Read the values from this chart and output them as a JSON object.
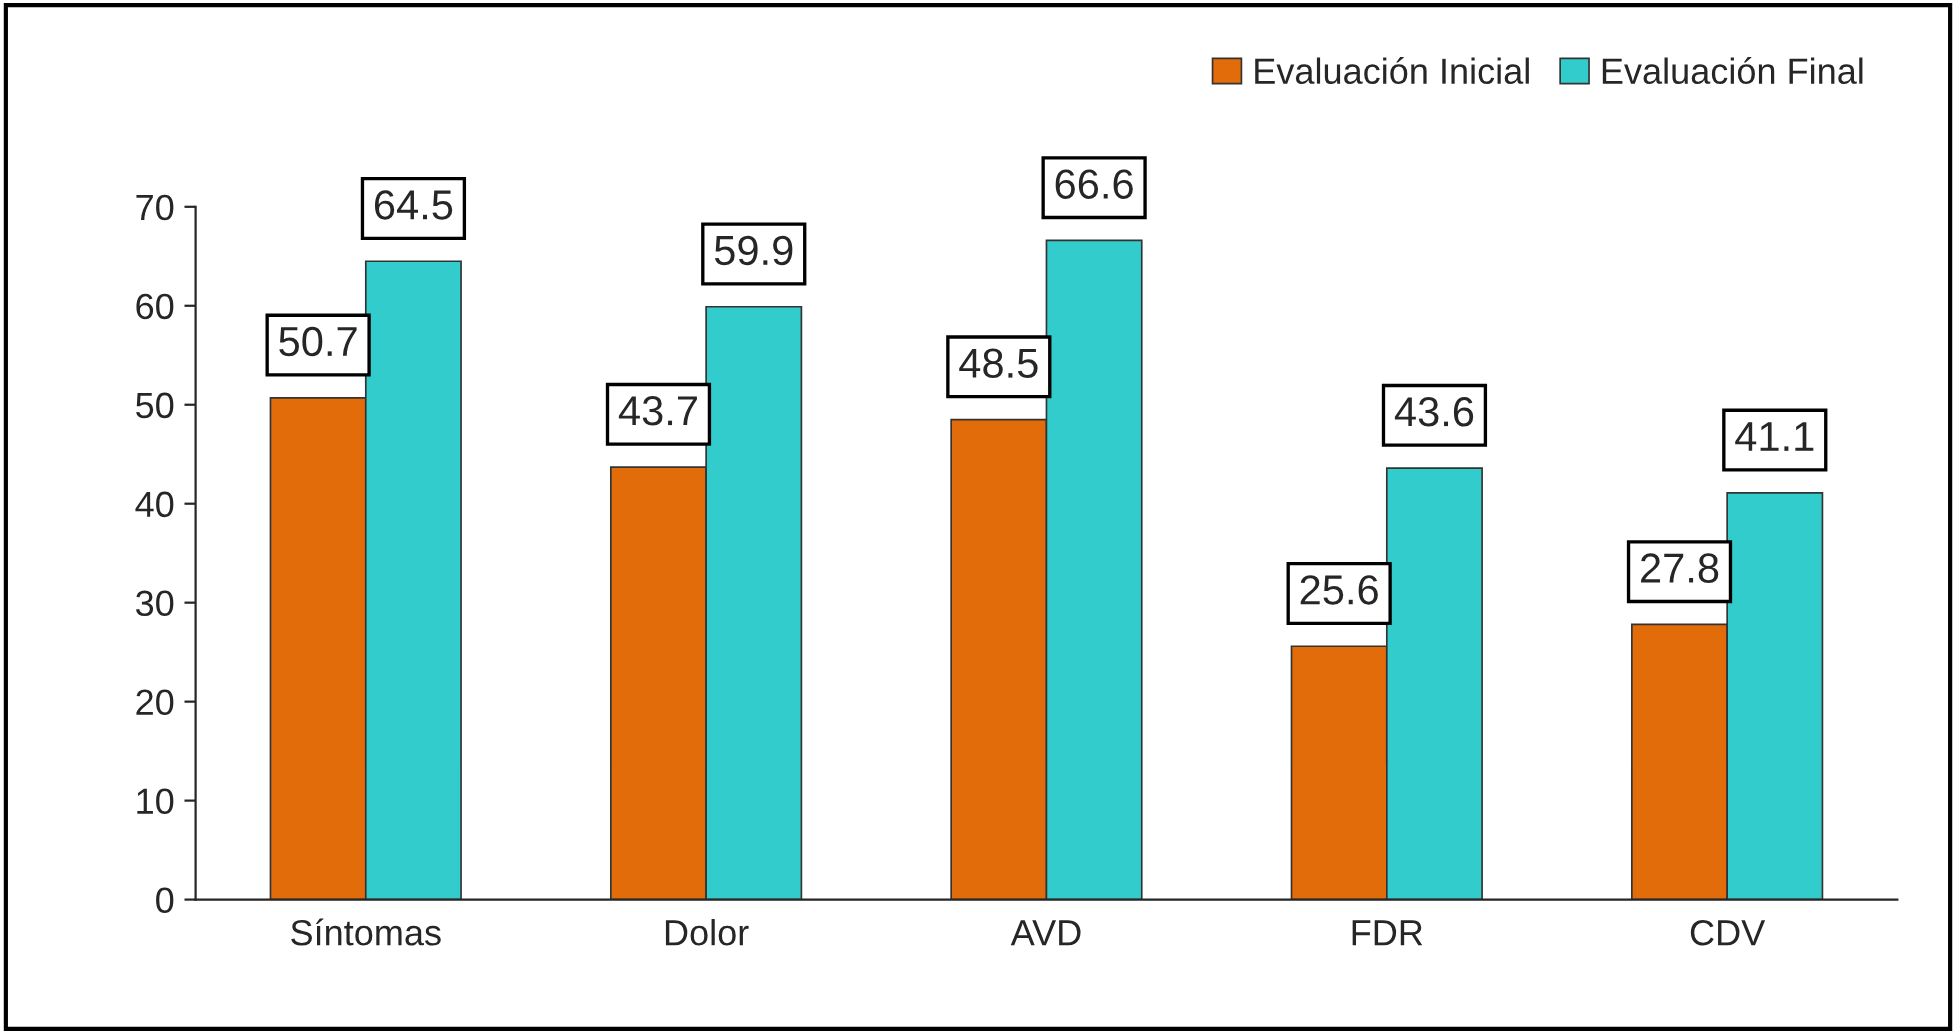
{
  "chart_data": {
    "type": "bar",
    "categories": [
      "Síntomas",
      "Dolor",
      "AVD",
      "FDR",
      "CDV"
    ],
    "series": [
      {
        "name": "Evaluación Inicial",
        "color": "#e36c0a",
        "values": [
          50.7,
          43.7,
          48.5,
          25.6,
          27.8
        ]
      },
      {
        "name": "Evaluación Final",
        "color": "#33cccc",
        "values": [
          64.5,
          59.9,
          66.6,
          43.6,
          41.1
        ]
      }
    ],
    "ylim": [
      0,
      70
    ],
    "yticks": [
      0,
      10,
      20,
      30,
      40,
      50,
      60,
      70
    ],
    "data_labels": true,
    "legend": "top right",
    "grid": false
  }
}
